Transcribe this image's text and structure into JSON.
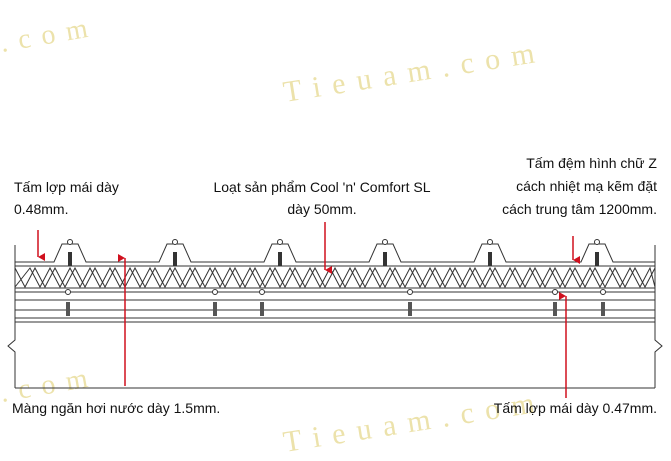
{
  "watermarks": [
    ". c o m",
    "T i e u a m . c o m",
    ". c o m",
    "T i e u a m . c o m"
  ],
  "labels": {
    "top_left": [
      "Tấm lợp mái dày",
      "0.48mm."
    ],
    "top_center": [
      "Loạt sản phẩm Cool 'n' Comfort SL",
      "dày 50mm."
    ],
    "top_right": [
      "Tấm đệm hình chữ Z",
      "cách nhiệt mạ kẽm đặt",
      "cách trung tâm 1200mm."
    ],
    "bottom_left": "Màng ngăn hơi nước dày 1.5mm.",
    "bottom_right": "Tấm lợp mái dày 0.47mm."
  }
}
